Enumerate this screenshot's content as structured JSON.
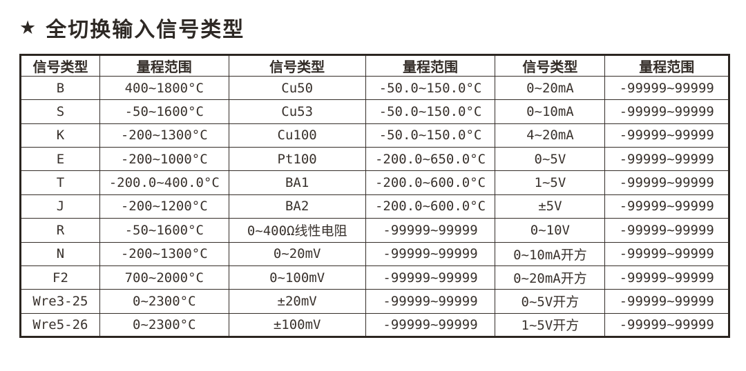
{
  "title": {
    "star": "★",
    "text": "全切换输入信号类型"
  },
  "table": {
    "headers": [
      "信号类型",
      "量程范围",
      "信号类型",
      "量程范围",
      "信号类型",
      "量程范围"
    ],
    "rows": [
      [
        "B",
        "400~1800°C",
        "Cu50",
        "-50.0~150.0°C",
        "0~20mA",
        "-99999~99999"
      ],
      [
        "S",
        "-50~1600°C",
        "Cu53",
        "-50.0~150.0°C",
        "0~10mA",
        "-99999~99999"
      ],
      [
        "K",
        "-200~1300°C",
        "Cu100",
        "-50.0~150.0°C",
        "4~20mA",
        "-99999~99999"
      ],
      [
        "E",
        "-200~1000°C",
        "Pt100",
        "-200.0~650.0°C",
        "0~5V",
        "-99999~99999"
      ],
      [
        "T",
        "-200.0~400.0°C",
        "BA1",
        "-200.0~600.0°C",
        "1~5V",
        "-99999~99999"
      ],
      [
        "J",
        "-200~1200°C",
        "BA2",
        "-200.0~600.0°C",
        "±5V",
        "-99999~99999"
      ],
      [
        "R",
        "-50~1600°C",
        "0~400Ω线性电阻",
        "-99999~99999",
        "0~10V",
        "-99999~99999"
      ],
      [
        "N",
        "-200~1300°C",
        "0~20mV",
        "-99999~99999",
        "0~10mA开方",
        "-99999~99999"
      ],
      [
        "F2",
        "700~2000°C",
        "0~100mV",
        "-99999~99999",
        "0~20mA开方",
        "-99999~99999"
      ],
      [
        "Wre3-25",
        "0~2300°C",
        "±20mV",
        "-99999~99999",
        "0~5V开方",
        "-99999~99999"
      ],
      [
        "Wre5-26",
        "0~2300°C",
        "±100mV",
        "-99999~99999",
        "1~5V开方",
        "-99999~99999"
      ]
    ]
  },
  "colors": {
    "text": "#38312c",
    "border": "#2b2520",
    "background": "#ffffff"
  }
}
